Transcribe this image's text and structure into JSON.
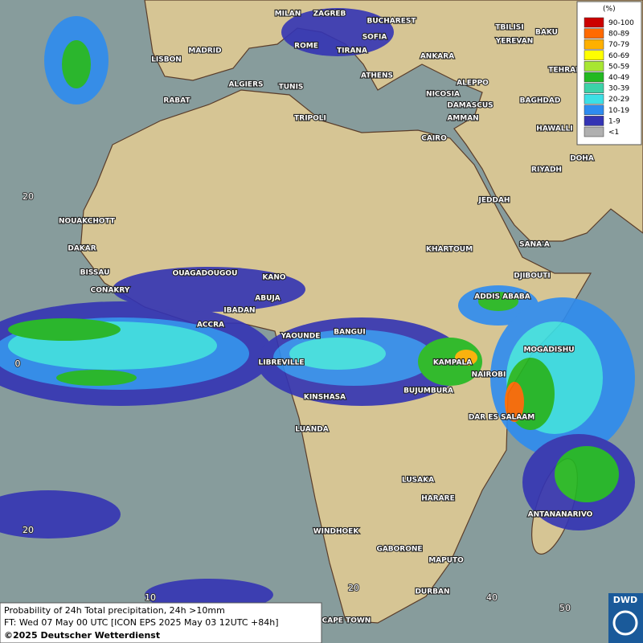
{
  "map": {
    "cities": [
      "MILAN",
      "ZAGREB",
      "BUCHAREST",
      "TBILISI",
      "BAKU",
      "MADRID",
      "ROME",
      "SOFIA",
      "TIRANA",
      "ANKARA",
      "YEREVAN",
      "LISBON",
      "ALGIERS",
      "TUNIS",
      "ATHENS",
      "TEHRAN",
      "RABAT",
      "NICOSIA",
      "ALEPPO",
      "BAGHDAD",
      "TRIPOLI",
      "DAMASCUS",
      "AMMAN",
      "HAWALLI",
      "CAIRO",
      "DOHA",
      "RIYADH",
      "NOUAKCHOTT",
      "JEDDAH",
      "DAKAR",
      "SANA'A",
      "KHARTOUM",
      "BISSAU",
      "OUAGADOUGOU",
      "DJIBOUTI",
      "KANO",
      "CONAKRY",
      "ABUJA",
      "ADDIS ABABA",
      "IBADAN",
      "ACCRA",
      "YAOUNDE",
      "BANGUI",
      "MOGADISHU",
      "LIBREVILLE",
      "KAMPALA",
      "NAIROBI",
      "KINSHASA",
      "BUJUMBURA",
      "DAR ES SALAAM",
      "LUANDA",
      "LUSAKA",
      "HARARE",
      "ANTANANARIVO",
      "WINDHOEK",
      "GABORONE",
      "MAPUTO",
      "DURBAN",
      "CAPE TOWN"
    ],
    "lat_labels": [
      "20",
      "0",
      "20"
    ],
    "lon_labels": [
      "10",
      "20",
      "40",
      "50"
    ]
  },
  "legend": {
    "title": "(%)",
    "items": [
      {
        "label": "90-100",
        "color": "#cc0000"
      },
      {
        "label": "80-89",
        "color": "#ff6a00"
      },
      {
        "label": "70-79",
        "color": "#ffb000"
      },
      {
        "label": "60-69",
        "color": "#ffff00"
      },
      {
        "label": "50-59",
        "color": "#a8e632"
      },
      {
        "label": "40-49",
        "color": "#22b922"
      },
      {
        "label": "30-39",
        "color": "#3cd2a8"
      },
      {
        "label": "20-29",
        "color": "#3ce0e6"
      },
      {
        "label": "10-19",
        "color": "#2e8cf0"
      },
      {
        "label": "1-9",
        "color": "#3434b4"
      },
      {
        "label": "<1",
        "color": "#b0b0b0"
      }
    ]
  },
  "caption": {
    "line1": "Probability of 24h Total precipitation, 24h >10mm",
    "line2": "FT: Wed 07 May 00 UTC [ICON EPS 2025 May 03 12UTC +84h]",
    "line3": "©2025 Deutscher Wetterdienst"
  },
  "logo": {
    "text": "DWD"
  }
}
